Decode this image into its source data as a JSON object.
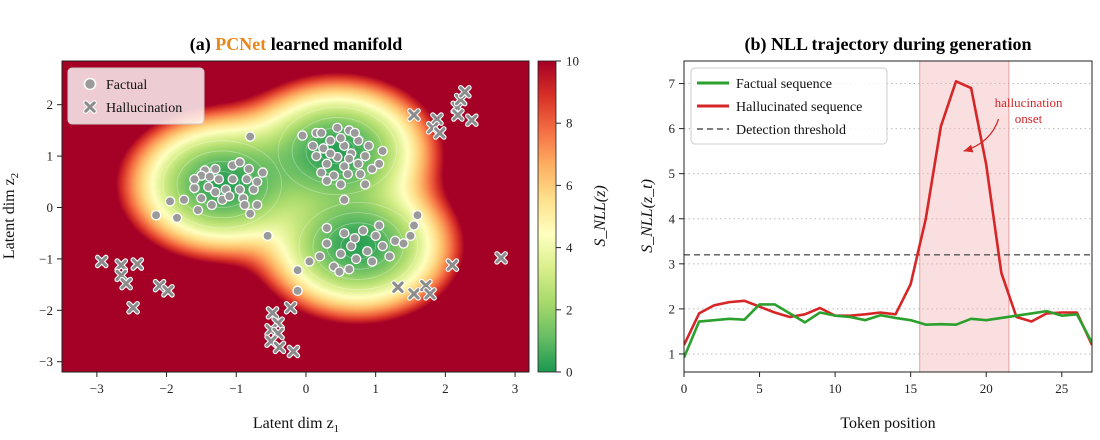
{
  "chart_data": [
    {
      "type": "scatter",
      "panel_label": "(a)",
      "title_accent": "PCNet",
      "title_rest": "learned manifold",
      "xlabel": "Latent dim z",
      "xlabel_sub": "1",
      "ylabel": "Latent dim z",
      "ylabel_sub": "2",
      "xlim": [
        -3.5,
        3.2
      ],
      "ylim": [
        -3.2,
        2.85
      ],
      "xticks": [
        -3,
        -2,
        -1,
        0,
        1,
        2,
        3
      ],
      "yticks": [
        -3,
        -2,
        -1,
        0,
        1,
        2
      ],
      "accent_color": "#e8861b",
      "colorbar": {
        "label": "S_NLL(z)",
        "range": [
          0,
          10
        ],
        "ticks": [
          0,
          2,
          4,
          6,
          8,
          10
        ],
        "colormap": [
          "#1a9850",
          "#66bd63",
          "#a6d96a",
          "#d9ef8b",
          "#ffffbf",
          "#fee08b",
          "#fdae61",
          "#f46d43",
          "#d73027",
          "#a50026"
        ]
      },
      "density_centers": [
        {
          "x": -1.2,
          "y": 0.45
        },
        {
          "x": 0.45,
          "y": 1.1
        },
        {
          "x": 0.75,
          "y": -0.75
        }
      ],
      "series": [
        {
          "name": "Factual",
          "marker": "circle",
          "color": "#9a9a9a",
          "points": [
            [
              -1.45,
              0.72
            ],
            [
              -1.3,
              0.75
            ],
            [
              -1.5,
              0.62
            ],
            [
              -1.38,
              0.6
            ],
            [
              -1.05,
              0.82
            ],
            [
              -0.95,
              0.88
            ],
            [
              -1.25,
              0.55
            ],
            [
              -1.6,
              0.38
            ],
            [
              -1.4,
              0.4
            ],
            [
              -1.15,
              0.35
            ],
            [
              -0.85,
              0.55
            ],
            [
              -0.75,
              0.35
            ],
            [
              -1.5,
              0.18
            ],
            [
              -1.2,
              0.15
            ],
            [
              -0.9,
              0.18
            ],
            [
              -0.7,
              0.5
            ],
            [
              -1.05,
              0.55
            ],
            [
              -1.3,
              0.3
            ],
            [
              -0.95,
              0.35
            ],
            [
              -1.6,
              0.55
            ],
            [
              -1.75,
              0.15
            ],
            [
              -0.88,
              0.05
            ],
            [
              -0.7,
              0.05
            ],
            [
              -1.55,
              -0.05
            ],
            [
              -0.62,
              0.68
            ],
            [
              -0.82,
              0.75
            ],
            [
              -1.1,
              0.22
            ],
            [
              -1.35,
              0.05
            ],
            [
              -0.8,
              -0.12
            ],
            [
              -1.85,
              -0.2
            ],
            [
              -2.15,
              -0.15
            ],
            [
              -1.95,
              0.12
            ],
            [
              -0.8,
              1.38
            ],
            [
              -0.55,
              -0.55
            ],
            [
              0.15,
              1.45
            ],
            [
              0.45,
              1.55
            ],
            [
              0.62,
              1.5
            ],
            [
              0.35,
              1.3
            ],
            [
              0.25,
              1.15
            ],
            [
              0.55,
              1.2
            ],
            [
              0.75,
              1.3
            ],
            [
              0.9,
              1.2
            ],
            [
              0.15,
              1.0
            ],
            [
              0.45,
              0.98
            ],
            [
              0.65,
              1.05
            ],
            [
              0.85,
              1.0
            ],
            [
              0.3,
              0.85
            ],
            [
              0.55,
              0.8
            ],
            [
              0.75,
              0.85
            ],
            [
              0.22,
              0.68
            ],
            [
              0.4,
              0.62
            ],
            [
              0.6,
              0.65
            ],
            [
              0.95,
              0.75
            ],
            [
              1.1,
              1.1
            ],
            [
              0.5,
              1.35
            ],
            [
              0.7,
              1.45
            ],
            [
              0.1,
              1.2
            ],
            [
              0.35,
              1.05
            ],
            [
              0.5,
              0.45
            ],
            [
              -0.05,
              1.4
            ],
            [
              0.62,
              0.95
            ],
            [
              0.85,
              0.45
            ],
            [
              0.3,
              0.52
            ],
            [
              1.05,
              0.85
            ],
            [
              0.22,
              1.45
            ],
            [
              0.55,
              0.15
            ],
            [
              0.78,
              0.65
            ],
            [
              0.55,
              -0.5
            ],
            [
              0.82,
              -0.45
            ],
            [
              1.0,
              -0.55
            ],
            [
              1.1,
              -0.75
            ],
            [
              0.65,
              -0.75
            ],
            [
              0.88,
              -0.85
            ],
            [
              0.3,
              -0.7
            ],
            [
              0.5,
              -0.9
            ],
            [
              0.72,
              -1.0
            ],
            [
              0.95,
              -1.05
            ],
            [
              1.2,
              -0.95
            ],
            [
              0.4,
              -1.15
            ],
            [
              0.62,
              -1.2
            ],
            [
              0.2,
              -0.95
            ],
            [
              1.28,
              -0.65
            ],
            [
              1.05,
              -0.35
            ],
            [
              1.5,
              -0.55
            ],
            [
              1.55,
              -0.35
            ],
            [
              1.6,
              -0.15
            ],
            [
              0.3,
              -0.4
            ],
            [
              -0.12,
              -1.22
            ],
            [
              0.05,
              -1.05
            ],
            [
              0.48,
              -1.25
            ],
            [
              0.7,
              -0.6
            ],
            [
              -0.12,
              -1.62
            ],
            [
              1.4,
              -0.7
            ]
          ]
        },
        {
          "name": "Hallucination",
          "marker": "x",
          "color": "#8c8c8c",
          "points": [
            [
              -2.93,
              -1.05
            ],
            [
              -2.65,
              -1.12
            ],
            [
              -2.42,
              -1.1
            ],
            [
              -2.65,
              -1.32
            ],
            [
              -2.58,
              -1.48
            ],
            [
              -2.1,
              -1.52
            ],
            [
              -1.98,
              -1.62
            ],
            [
              -2.48,
              -1.95
            ],
            [
              -0.48,
              -2.05
            ],
            [
              -0.4,
              -2.25
            ],
            [
              -0.5,
              -2.38
            ],
            [
              -0.4,
              -2.45
            ],
            [
              -0.5,
              -2.6
            ],
            [
              -0.38,
              -2.72
            ],
            [
              -0.18,
              -2.8
            ],
            [
              -0.22,
              -1.95
            ],
            [
              1.55,
              1.8
            ],
            [
              1.88,
              1.72
            ],
            [
              1.82,
              1.55
            ],
            [
              1.92,
              1.45
            ],
            [
              2.17,
              1.95
            ],
            [
              2.22,
              2.1
            ],
            [
              2.28,
              2.25
            ],
            [
              2.18,
              1.8
            ],
            [
              2.38,
              1.7
            ],
            [
              1.32,
              -1.55
            ],
            [
              1.55,
              -1.68
            ],
            [
              1.72,
              -1.52
            ],
            [
              1.78,
              -1.68
            ],
            [
              2.1,
              -1.12
            ],
            [
              2.8,
              -0.98
            ]
          ]
        }
      ],
      "legend": {
        "position": "top-left"
      }
    },
    {
      "type": "line",
      "panel_label": "(b)",
      "title": "NLL trajectory during generation",
      "xlabel": "Token position",
      "ylabel": "S_NLL(z_t)",
      "xlim": [
        0,
        27
      ],
      "ylim": [
        0.6,
        7.5
      ],
      "xticks": [
        0,
        5,
        10,
        15,
        20,
        25
      ],
      "yticks": [
        1,
        2,
        3,
        4,
        5,
        6,
        7
      ],
      "grid": "y-dotted",
      "threshold": {
        "name": "Detection threshold",
        "value": 3.2,
        "color": "#555555"
      },
      "shaded_region": {
        "x0": 15.6,
        "x1": 21.5,
        "color": "#f2b8b8"
      },
      "annotation": {
        "lines": [
          "hallucination",
          "onset"
        ],
        "color": "#d62728",
        "text_x": 22.8,
        "text_y": 6.3,
        "arrow_to_x": 18.5,
        "arrow_to_y": 5.5
      },
      "x": [
        0,
        1,
        2,
        3,
        4,
        5,
        6,
        7,
        8,
        9,
        10,
        11,
        12,
        13,
        14,
        15,
        16,
        17,
        18,
        19,
        20,
        21,
        22,
        23,
        24,
        25,
        26,
        27
      ],
      "series": [
        {
          "name": "Factual sequence",
          "color": "#2ca02c",
          "values": [
            0.92,
            1.72,
            1.75,
            1.78,
            1.76,
            2.1,
            2.1,
            1.9,
            1.7,
            1.92,
            1.85,
            1.82,
            1.75,
            1.86,
            1.8,
            1.75,
            1.65,
            1.66,
            1.65,
            1.78,
            1.75,
            1.8,
            1.85,
            1.9,
            1.95,
            1.85,
            1.88,
            1.25
          ]
        },
        {
          "name": "Hallucinated sequence",
          "color": "#d62728",
          "values": [
            1.2,
            1.9,
            2.08,
            2.15,
            2.18,
            2.05,
            1.92,
            1.82,
            1.88,
            2.02,
            1.85,
            1.85,
            1.88,
            1.92,
            1.88,
            2.55,
            4.0,
            6.05,
            7.05,
            6.9,
            5.2,
            2.8,
            1.82,
            1.72,
            1.9,
            1.92,
            1.92,
            1.2
          ]
        }
      ],
      "legend": {
        "position": "top-left"
      }
    }
  ]
}
